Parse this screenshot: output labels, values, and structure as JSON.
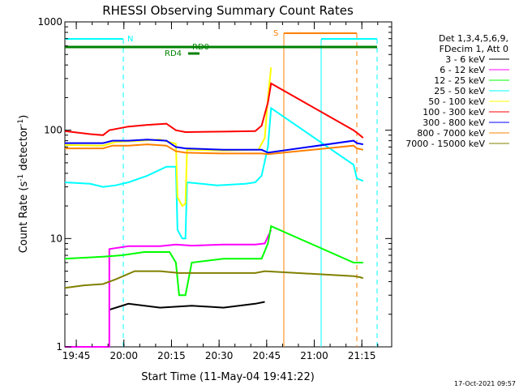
{
  "chart_data": {
    "type": "line",
    "title": "RHESSI Observing Summary Count Rates",
    "xlabel": "Start Time (11-May-04 19:41:22)",
    "ylabel_main": "Count Rate (s",
    "ylabel_sup1": "-1",
    "ylabel_mid": " detector",
    "ylabel_sup2": "-1",
    "ylabel_end": ")",
    "y_scale": "log",
    "ylim": [
      1,
      1000
    ],
    "xlim_minutes": [
      0,
      103
    ],
    "yticks": [
      {
        "value": 1,
        "label": "1"
      },
      {
        "value": 10,
        "label": "10"
      },
      {
        "value": 100,
        "label": "100"
      },
      {
        "value": 1000,
        "label": "1000"
      }
    ],
    "xticks": [
      {
        "t": 3.6,
        "label": "19:45"
      },
      {
        "t": 18.6,
        "label": "20:00"
      },
      {
        "t": 33.6,
        "label": "20:15"
      },
      {
        "t": 48.6,
        "label": "20:30"
      },
      {
        "t": 63.6,
        "label": "20:45"
      },
      {
        "t": 78.6,
        "label": "21:00"
      },
      {
        "t": 93.6,
        "label": "21:15"
      }
    ],
    "legend_title": [
      "Det 1,3,4,5,6,9,",
      "FDecim 1, Att 0"
    ],
    "legend_position": "right",
    "series": [
      {
        "name": "3 - 6 keV",
        "color": "#000000",
        "points": [
          [
            14,
            2.2
          ],
          [
            20,
            2.5
          ],
          [
            30,
            2.3
          ],
          [
            40,
            2.4
          ],
          [
            50,
            2.3
          ],
          [
            60,
            2.5
          ],
          [
            63,
            2.6
          ]
        ]
      },
      {
        "name": "6 - 12 keV",
        "color": "#ff00ff",
        "points": [
          [
            0,
            1
          ],
          [
            14,
            1
          ],
          [
            14,
            8
          ],
          [
            20,
            8.5
          ],
          [
            30,
            8.5
          ],
          [
            35,
            8.8
          ],
          [
            40,
            8.6
          ],
          [
            50,
            8.8
          ],
          [
            60,
            8.8
          ],
          [
            63,
            9
          ],
          [
            65,
            12
          ]
        ]
      },
      {
        "name": "12 - 25 keV",
        "color": "#00ff00",
        "points": [
          [
            0,
            6.5
          ],
          [
            12,
            6.8
          ],
          [
            18,
            7
          ],
          [
            25,
            7.5
          ],
          [
            33,
            7.5
          ],
          [
            35,
            6
          ],
          [
            36,
            3
          ],
          [
            38,
            3
          ],
          [
            40,
            6
          ],
          [
            50,
            6.5
          ],
          [
            62,
            6.5
          ],
          [
            64,
            9
          ],
          [
            65,
            13
          ],
          [
            91,
            6
          ],
          [
            94,
            6
          ]
        ]
      },
      {
        "name": "25 - 50 keV",
        "color": "#00ffff",
        "points": [
          [
            0,
            33
          ],
          [
            8,
            32
          ],
          [
            12,
            30
          ],
          [
            16,
            31
          ],
          [
            20,
            33
          ],
          [
            26,
            38
          ],
          [
            32,
            46
          ],
          [
            35,
            46
          ],
          [
            35.5,
            12
          ],
          [
            37,
            10
          ],
          [
            38,
            10
          ],
          [
            38.5,
            33
          ],
          [
            48,
            31
          ],
          [
            57,
            32
          ],
          [
            60,
            33
          ],
          [
            62,
            38
          ],
          [
            64,
            70
          ],
          [
            65,
            160
          ],
          [
            91,
            48
          ],
          [
            92,
            36
          ],
          [
            94,
            34
          ]
        ]
      },
      {
        "name": "50 - 100 keV",
        "color": "#ffff00",
        "points": [
          [
            0,
            73
          ],
          [
            12,
            72
          ],
          [
            16,
            78
          ],
          [
            24,
            80
          ],
          [
            30,
            82
          ],
          [
            35,
            75
          ],
          [
            35.5,
            24
          ],
          [
            37,
            20
          ],
          [
            38,
            21
          ],
          [
            38.5,
            66
          ],
          [
            50,
            65
          ],
          [
            61,
            66
          ],
          [
            63,
            85
          ],
          [
            64,
            200
          ],
          [
            65,
            380
          ]
        ]
      },
      {
        "name": "100 - 300 keV",
        "color": "#ff0000",
        "points": [
          [
            0,
            98
          ],
          [
            8,
            92
          ],
          [
            12,
            90
          ],
          [
            14,
            100
          ],
          [
            20,
            108
          ],
          [
            26,
            112
          ],
          [
            32,
            115
          ],
          [
            35,
            100
          ],
          [
            38,
            96
          ],
          [
            50,
            97
          ],
          [
            60,
            98
          ],
          [
            62,
            110
          ],
          [
            64,
            180
          ],
          [
            65,
            270
          ],
          [
            91,
            100
          ],
          [
            93,
            90
          ],
          [
            94,
            85
          ]
        ]
      },
      {
        "name": "300 - 800 keV",
        "color": "#0000ff",
        "points": [
          [
            0,
            76
          ],
          [
            12,
            76
          ],
          [
            15,
            80
          ],
          [
            20,
            80
          ],
          [
            26,
            82
          ],
          [
            32,
            80
          ],
          [
            35,
            70
          ],
          [
            38,
            68
          ],
          [
            50,
            66
          ],
          [
            62,
            66
          ],
          [
            64,
            62
          ],
          [
            91,
            80
          ],
          [
            92,
            76
          ],
          [
            94,
            74
          ]
        ]
      },
      {
        "name": "800 - 7000 keV",
        "color": "#ff8000",
        "points": [
          [
            0,
            68
          ],
          [
            12,
            68
          ],
          [
            15,
            72
          ],
          [
            20,
            72
          ],
          [
            26,
            74
          ],
          [
            32,
            72
          ],
          [
            35,
            64
          ],
          [
            38,
            62
          ],
          [
            50,
            61
          ],
          [
            62,
            61
          ],
          [
            64,
            60
          ],
          [
            91,
            72
          ],
          [
            92,
            68
          ],
          [
            94,
            66
          ]
        ]
      },
      {
        "name": "7000 - 15000 keV",
        "color": "#808000",
        "points": [
          [
            0,
            3.5
          ],
          [
            6,
            3.7
          ],
          [
            12,
            3.8
          ],
          [
            16,
            4.2
          ],
          [
            22,
            5
          ],
          [
            30,
            5
          ],
          [
            36,
            4.8
          ],
          [
            44,
            4.8
          ],
          [
            52,
            4.8
          ],
          [
            60,
            4.8
          ],
          [
            63,
            5
          ],
          [
            91,
            4.5
          ],
          [
            93,
            4.4
          ],
          [
            94,
            4.3
          ]
        ]
      }
    ],
    "annotations": [
      {
        "label": "N",
        "color": "#00ffff"
      },
      {
        "label": "S",
        "color": "#ff8000"
      },
      {
        "label": "RD0",
        "color": "#008000"
      },
      {
        "label": "RD4",
        "color": "#008000"
      }
    ],
    "timestamp": "17-Oct-2021 09:57"
  }
}
